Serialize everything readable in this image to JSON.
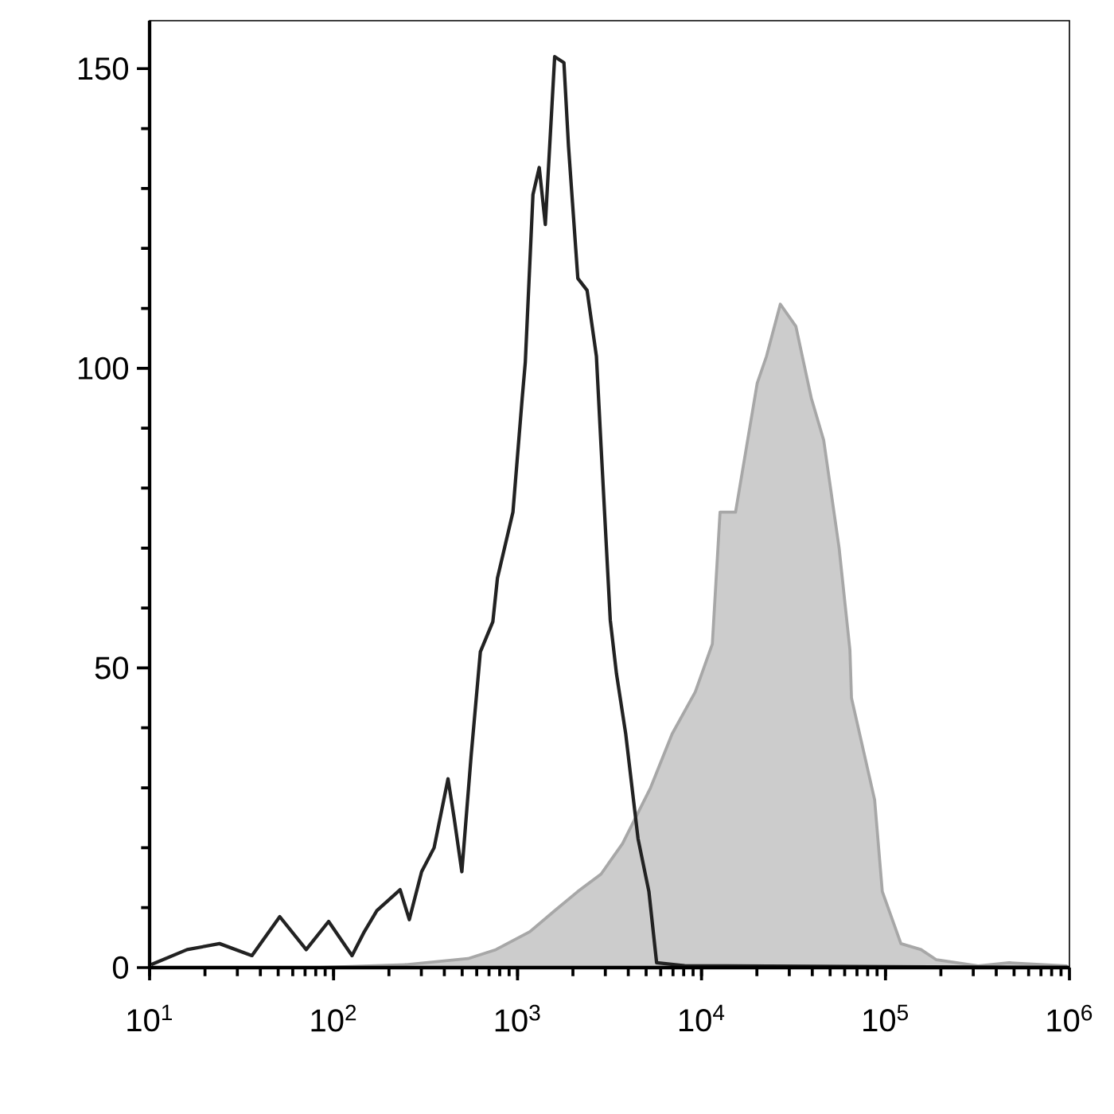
{
  "chart_data": {
    "type": "line",
    "log": "x",
    "xlim": [
      10,
      1000000
    ],
    "xticks": [
      {
        "value": 10,
        "label": "10$^{1}$"
      },
      {
        "value": 100,
        "label": "10$^{2}$"
      },
      {
        "value": 1000,
        "label": "10$^{3}$"
      },
      {
        "value": 10000,
        "label": "10$^{4}$"
      },
      {
        "value": 100000,
        "label": "10$^{5}$"
      },
      {
        "value": 1000000,
        "label": "10$^{6}$"
      }
    ],
    "ylim": [
      0,
      158
    ],
    "yticks": [
      0,
      50,
      100,
      150
    ],
    "series": [
      {
        "type": "area",
        "color": "#cccccc",
        "x": [
          78,
          248,
          538,
          763,
          1167,
          1592,
          2127,
          2844,
          3724,
          5284,
          6925,
          9247,
          11450,
          12610,
          15310,
          20080,
          22550,
          26820,
          32580,
          39540,
          46150,
          55980,
          64080,
          65350,
          87300,
          96100,
          121300,
          156100,
          189200,
          319000,
          470000,
          962000
        ],
        "values": [
          0,
          0.5,
          1.5,
          3,
          6,
          9.5,
          12.7,
          15.6,
          20.7,
          30,
          39,
          46,
          54,
          76,
          76,
          97.5,
          102,
          110.7,
          107,
          95,
          88,
          70,
          53,
          45,
          28,
          12.7,
          4,
          3,
          1.3,
          0.3,
          0.8,
          0.3
        ]
      },
      {
        "color": "#222222",
        "x": [
          10.2,
          16,
          24,
          36,
          51,
          71,
          94,
          126,
          147,
          172,
          230,
          258,
          301,
          352,
          419,
          452,
          498,
          560,
          628,
          734,
          778,
          944,
          1060,
          1102,
          1213,
          1312,
          1416,
          1592,
          1787,
          1893,
          2127,
          2388,
          2684,
          2844,
          3192,
          3451,
          3873,
          4519,
          5176,
          5702,
          8085,
          982000
        ],
        "values": [
          0.5,
          3,
          4,
          2,
          8.5,
          3,
          7.7,
          2,
          6,
          9.5,
          13,
          8,
          16,
          20,
          31.5,
          25,
          16,
          35.5,
          52.7,
          57.7,
          65,
          76,
          95,
          101,
          129,
          133.5,
          124,
          152,
          151,
          137,
          115,
          113,
          102,
          87,
          58,
          49,
          39,
          21.5,
          12.7,
          0.8,
          0.3,
          0
        ]
      }
    ]
  }
}
